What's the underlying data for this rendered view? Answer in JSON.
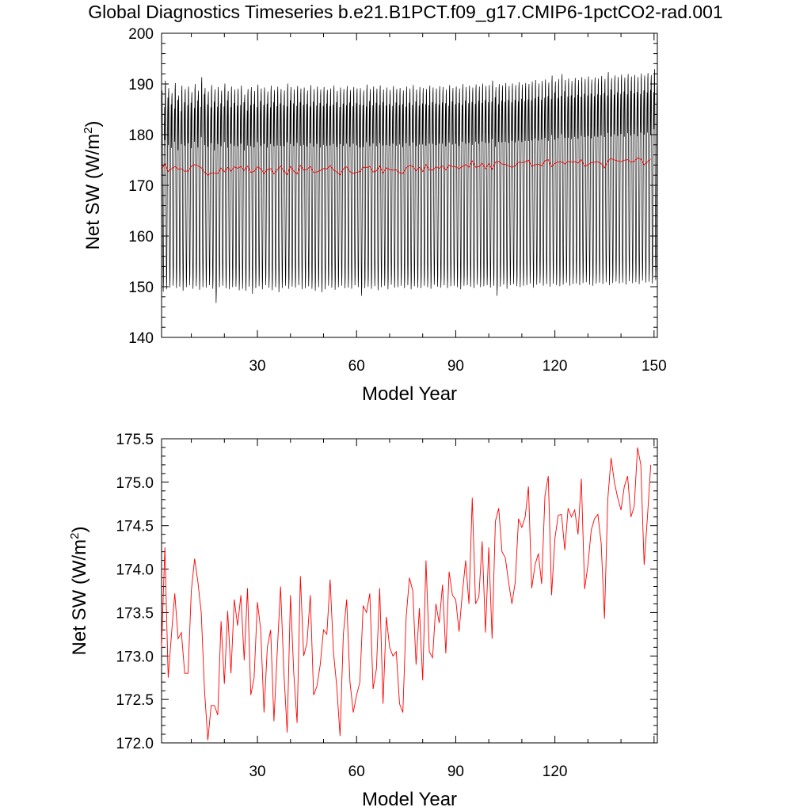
{
  "title": "Global Diagnostics Timeseries b.e21.B1PCT.f09_g17.CMIP6-1pctCO2-rad.001",
  "colors": {
    "monthly": "#000000",
    "annual": "#ff0000",
    "axes": "#000000"
  },
  "chart_data": [
    {
      "type": "line",
      "xlabel": "Model Year",
      "ylabel": "Net SW (W/m²)",
      "ylabel_main": "Net SW (W/m",
      "ylabel_sup": "2",
      "ylabel_tail": ")",
      "xlim": [
        1,
        151
      ],
      "ylim": [
        140,
        200
      ],
      "xticks": [
        30,
        60,
        90,
        120,
        150
      ],
      "yticks": [
        140,
        150,
        160,
        170,
        180,
        190,
        200
      ],
      "grid": false,
      "series": [
        {
          "key": "monthly",
          "color": "#000000",
          "description_values": "monthly global mean, seasonal cycle ~149 to ~191",
          "annual_min": [
            149.0,
            149.5,
            149.8,
            150.2,
            149.7,
            150.0,
            149.2,
            149.9,
            150.3,
            149.6,
            150.1,
            149.4,
            149.9,
            149.8,
            150.3,
            149.6,
            146.8,
            149.9,
            150.2,
            149.7,
            149.5,
            149.9,
            150.0,
            149.3,
            149.6,
            149.2,
            150.0,
            148.6,
            149.7,
            150.1,
            149.5,
            150.3,
            149.8,
            149.3,
            149.9,
            148.9,
            149.7,
            150.2,
            149.6,
            150.0,
            149.8,
            150.3,
            149.5,
            149.7,
            150.1,
            149.6,
            149.2,
            149.9,
            148.9,
            149.5,
            150.2,
            149.8,
            149.4,
            149.9,
            150.2,
            149.7,
            149.8,
            149.6,
            150.3,
            149.9,
            148.2,
            149.7,
            150.0,
            149.6,
            150.1,
            149.3,
            149.9,
            150.2,
            149.5,
            150.4,
            149.8,
            149.9,
            150.2,
            149.7,
            150.3,
            149.5,
            150.1,
            149.8,
            149.7,
            150.2,
            149.9,
            149.6,
            150.4,
            150.0,
            149.8,
            150.3,
            149.7,
            150.1,
            150.2,
            149.9,
            149.5,
            150.2,
            150.3,
            150.0,
            149.7,
            150.4,
            149.9,
            150.1,
            150.3,
            149.8,
            150.2,
            148.2,
            150.0,
            150.4,
            149.6,
            150.3,
            150.5,
            150.1,
            149.9,
            150.2,
            150.3,
            150.6,
            149.8,
            150.4,
            150.7,
            150.2,
            150.5,
            150.0,
            150.6,
            150.3,
            150.1,
            150.4,
            150.8,
            150.2,
            150.5,
            150.6,
            150.3,
            150.7,
            150.9,
            150.4,
            150.2,
            150.6,
            150.8,
            150.5,
            150.9,
            150.3,
            150.7,
            151.0,
            150.6,
            150.8,
            150.4,
            151.1,
            150.7,
            150.9,
            150.5,
            151.2,
            150.8,
            151.0,
            150.6,
            151.3,
            150.9
          ],
          "annual_max": [
            189.5,
            191.5,
            190.0,
            189.0,
            191.0,
            188.5,
            190.5,
            189.8,
            190.3,
            189.2,
            190.8,
            189.5,
            192.2,
            190.0,
            189.3,
            190.6,
            189.8,
            190.2,
            189.5,
            190.9,
            189.4,
            190.3,
            189.7,
            189.9,
            190.5,
            188.7,
            189.8,
            190.2,
            189.4,
            190.7,
            189.9,
            190.1,
            189.3,
            190.5,
            189.6,
            190.3,
            189.8,
            189.5,
            190.9,
            190.2,
            189.7,
            190.4,
            189.9,
            190.1,
            189.5,
            190.6,
            189.8,
            190.3,
            189.7,
            190.2,
            189.6,
            189.9,
            190.5,
            189.4,
            190.1,
            189.8,
            190.4,
            189.6,
            190.2,
            189.9,
            190.0,
            189.5,
            190.7,
            189.8,
            190.3,
            189.9,
            190.5,
            189.7,
            190.1,
            189.6,
            190.4,
            189.8,
            190.0,
            189.5,
            190.3,
            189.9,
            190.6,
            189.7,
            190.2,
            190.0,
            189.8,
            190.5,
            190.1,
            189.9,
            190.4,
            190.2,
            189.7,
            190.6,
            190.0,
            190.3,
            189.9,
            190.8,
            190.2,
            190.5,
            190.1,
            190.7,
            190.3,
            190.9,
            190.4,
            190.6,
            191.5,
            190.2,
            190.8,
            190.5,
            191.0,
            190.4,
            190.9,
            190.6,
            191.2,
            190.7,
            191.0,
            190.8,
            191.3,
            191.6,
            190.9,
            191.4,
            191.7,
            191.1,
            192.5,
            191.3,
            191.8,
            192.8,
            191.6,
            191.9,
            191.4,
            192.0,
            191.6,
            192.2,
            191.8,
            192.3,
            191.7,
            192.1,
            191.9,
            192.4,
            191.8,
            193.2,
            192.0,
            192.5,
            192.2,
            192.7,
            192.1,
            192.8,
            192.3,
            192.6,
            192.2,
            192.9,
            192.5,
            193.0,
            192.6,
            193.8,
            192.8
          ]
        },
        {
          "key": "annual",
          "color": "#ff0000",
          "description_values": "annual mean (same as lower panel)"
        }
      ]
    },
    {
      "type": "line",
      "xlabel": "Model Year",
      "ylabel": "Net SW (W/m²)",
      "ylabel_main": "Net SW (W/m",
      "ylabel_sup": "2",
      "ylabel_tail": ")",
      "xlim": [
        1,
        151
      ],
      "ylim": [
        172.0,
        175.5
      ],
      "xticks": [
        30,
        60,
        90,
        120
      ],
      "yticks": [
        "172.0",
        "172.5",
        "173.0",
        "173.5",
        "174.0",
        "174.5",
        "175.0",
        "175.5"
      ],
      "grid": false,
      "series": [
        {
          "key": "annual",
          "color": "#ff0000",
          "x_start": 1,
          "values": [
            173.1,
            174.25,
            172.75,
            173.25,
            173.72,
            173.2,
            173.27,
            172.8,
            172.8,
            173.75,
            174.12,
            173.85,
            173.5,
            172.6,
            172.03,
            172.43,
            172.43,
            172.32,
            173.4,
            172.68,
            173.52,
            172.8,
            173.65,
            173.35,
            173.7,
            172.95,
            173.78,
            172.55,
            172.75,
            173.62,
            173.3,
            172.35,
            173.1,
            173.3,
            172.25,
            173.05,
            173.8,
            172.82,
            172.12,
            173.7,
            172.8,
            172.23,
            173.92,
            173.0,
            173.15,
            173.7,
            172.55,
            172.65,
            172.9,
            173.3,
            173.25,
            173.88,
            173.05,
            172.65,
            172.08,
            173.25,
            173.65,
            172.7,
            172.35,
            172.55,
            172.7,
            173.58,
            173.5,
            173.72,
            172.62,
            172.85,
            173.78,
            172.45,
            173.45,
            173.1,
            173.0,
            173.05,
            172.45,
            172.35,
            173.45,
            173.9,
            173.75,
            172.9,
            173.55,
            172.72,
            174.1,
            173.05,
            172.98,
            173.6,
            173.38,
            173.82,
            173.03,
            173.97,
            173.7,
            173.65,
            173.28,
            173.72,
            174.1,
            173.6,
            174.82,
            173.6,
            173.68,
            174.32,
            173.27,
            174.25,
            173.2,
            174.55,
            174.7,
            174.2,
            174.13,
            173.85,
            173.6,
            173.85,
            174.58,
            174.48,
            174.6,
            174.95,
            173.78,
            174.05,
            174.18,
            173.83,
            174.85,
            175.07,
            173.7,
            174.35,
            174.62,
            174.63,
            174.22,
            174.7,
            174.6,
            174.68,
            174.4,
            175.04,
            173.77,
            174.05,
            174.45,
            174.58,
            174.63,
            174.3,
            173.43,
            174.8,
            175.28,
            175.0,
            174.82,
            174.68,
            174.95,
            175.07,
            174.6,
            174.72,
            175.4,
            175.2,
            174.05,
            174.6,
            175.2
          ]
        }
      ]
    }
  ]
}
